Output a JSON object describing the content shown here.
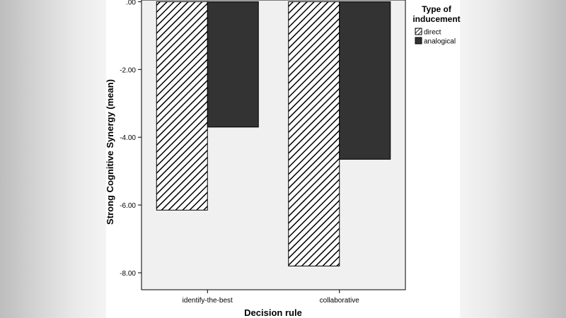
{
  "chart_data": {
    "type": "bar",
    "categories": [
      "identify-the-best",
      "collaborative"
    ],
    "series": [
      {
        "name": "direct",
        "values": [
          -6.15,
          -7.8
        ],
        "pattern": "hatched"
      },
      {
        "name": "analogical",
        "values": [
          -3.7,
          -4.65
        ],
        "color": "#333333"
      }
    ],
    "xlabel": "Decision rule",
    "ylabel": "Strong Cognitive Synergy (mean)",
    "ylim": [
      -8.5,
      0.05
    ],
    "yticks": [
      0,
      -2,
      -4,
      -6,
      -8
    ],
    "ytick_labels": [
      ".00",
      "-2.00",
      "-4.00",
      "-6.00",
      "-8.00"
    ],
    "legend": {
      "title_line1": "Type of",
      "title_line2": "inducement",
      "position": "right"
    },
    "colors": {
      "plot_background": "#f0f0f0",
      "analogical": "#333333",
      "hatch": "#000000"
    }
  }
}
